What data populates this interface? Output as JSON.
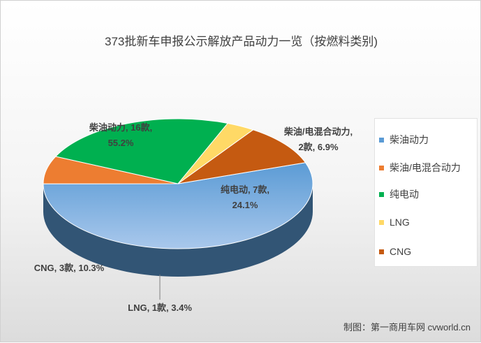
{
  "chart_data": {
    "type": "pie",
    "title": "373批新车申报公示解放产品动力一览（按燃料类别)",
    "unit": "款",
    "slices": [
      {
        "name": "柴油动力",
        "count": 16,
        "percent": 55.2,
        "color": "#5b9bd5",
        "label": "柴油动力, 16款,",
        "pct_label": "55.2%"
      },
      {
        "name": "柴油/电混合动力",
        "count": 2,
        "percent": 6.9,
        "color": "#ed7d31",
        "label": "柴油/电混合动力,",
        "pct_label": "2款, 6.9%"
      },
      {
        "name": "纯电动",
        "count": 7,
        "percent": 24.1,
        "color": "#00b050",
        "label": "纯电动, 7款,",
        "pct_label": "24.1%"
      },
      {
        "name": "LNG",
        "count": 1,
        "percent": 3.4,
        "color": "#ffd966",
        "label": "LNG, 1款, 3.4%",
        "pct_label": ""
      },
      {
        "name": "CNG",
        "count": 3,
        "percent": 10.3,
        "color": "#c55a11",
        "label": "CNG, 3款, 10.3%",
        "pct_label": ""
      }
    ],
    "legend_position": "right"
  },
  "credit": "制图：第一商用车网 cvworld.cn"
}
